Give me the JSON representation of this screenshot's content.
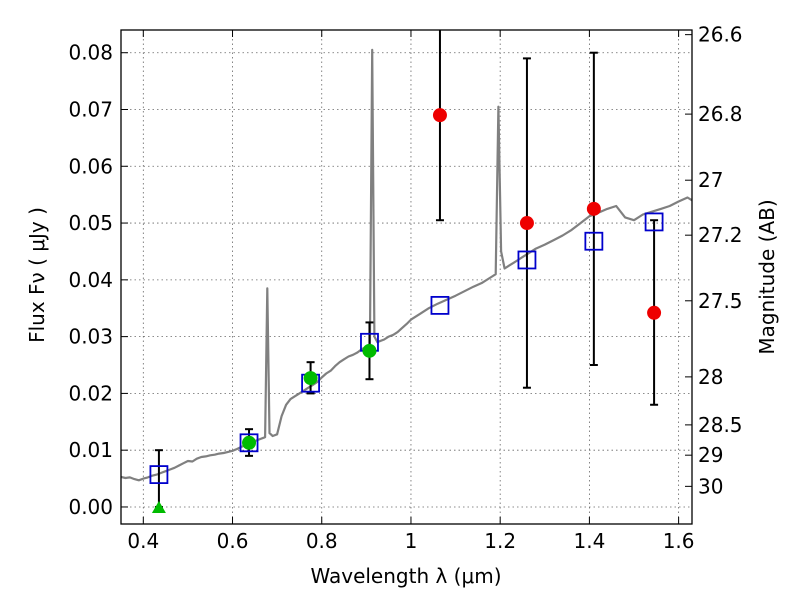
{
  "chart_data": {
    "type": "scatter",
    "xlabel": "Wavelength  λ (μm)",
    "ylabel": "Flux  Fν  ( μJy )",
    "y2label": "Magnitude (AB)",
    "xlim": [
      0.35,
      1.63
    ],
    "ylim": [
      -0.003,
      0.084
    ],
    "grid": true,
    "xticks": [
      {
        "value": 0.4,
        "label": "0.4"
      },
      {
        "value": 0.6,
        "label": "0.6"
      },
      {
        "value": 0.8,
        "label": "0.8"
      },
      {
        "value": 1.0,
        "label": "1"
      },
      {
        "value": 1.2,
        "label": "1.2"
      },
      {
        "value": 1.4,
        "label": "1.4"
      },
      {
        "value": 1.6,
        "label": "1.6"
      }
    ],
    "yticks": [
      {
        "value": 0.0,
        "label": "0.00"
      },
      {
        "value": 0.01,
        "label": "0.01"
      },
      {
        "value": 0.02,
        "label": "0.02"
      },
      {
        "value": 0.03,
        "label": "0.03"
      },
      {
        "value": 0.04,
        "label": "0.04"
      },
      {
        "value": 0.05,
        "label": "0.05"
      },
      {
        "value": 0.06,
        "label": "0.06"
      },
      {
        "value": 0.07,
        "label": "0.07"
      },
      {
        "value": 0.08,
        "label": "0.08"
      }
    ],
    "y2ticks": [
      {
        "mag": 26.6,
        "label": "26.6"
      },
      {
        "mag": 26.8,
        "label": "26.8"
      },
      {
        "mag": 27.0,
        "label": "27"
      },
      {
        "mag": 27.2,
        "label": "27.2"
      },
      {
        "mag": 27.5,
        "label": "27.5"
      },
      {
        "mag": 28.0,
        "label": "28"
      },
      {
        "mag": 28.5,
        "label": "28.5"
      },
      {
        "mag": 29.0,
        "label": "29"
      },
      {
        "mag": 30.0,
        "label": "30"
      }
    ],
    "colors": {
      "spectrum": "#808080",
      "model": "#0000cc",
      "green": "#00bb00",
      "red": "#ee0000",
      "errorbar": "#000000",
      "grid": "#666666"
    },
    "spectrum": [
      [
        0.35,
        0.0053
      ],
      [
        0.36,
        0.0051
      ],
      [
        0.37,
        0.0052
      ],
      [
        0.38,
        0.0049
      ],
      [
        0.39,
        0.0047
      ],
      [
        0.4,
        0.005
      ],
      [
        0.41,
        0.0052
      ],
      [
        0.42,
        0.0055
      ],
      [
        0.43,
        0.0057
      ],
      [
        0.44,
        0.006
      ],
      [
        0.45,
        0.0063
      ],
      [
        0.46,
        0.0066
      ],
      [
        0.47,
        0.0069
      ],
      [
        0.48,
        0.0073
      ],
      [
        0.49,
        0.0077
      ],
      [
        0.5,
        0.0081
      ],
      [
        0.51,
        0.008
      ],
      [
        0.52,
        0.0085
      ],
      [
        0.53,
        0.0088
      ],
      [
        0.54,
        0.0089
      ],
      [
        0.55,
        0.0091
      ],
      [
        0.56,
        0.0092
      ],
      [
        0.57,
        0.0094
      ],
      [
        0.58,
        0.0095
      ],
      [
        0.59,
        0.0097
      ],
      [
        0.6,
        0.0099
      ],
      [
        0.61,
        0.0102
      ],
      [
        0.62,
        0.0106
      ],
      [
        0.63,
        0.0109
      ],
      [
        0.64,
        0.0113
      ],
      [
        0.65,
        0.0116
      ],
      [
        0.66,
        0.0119
      ],
      [
        0.67,
        0.0122
      ],
      [
        0.673,
        0.0123
      ],
      [
        0.678,
        0.0385
      ],
      [
        0.683,
        0.013
      ],
      [
        0.69,
        0.0125
      ],
      [
        0.7,
        0.0128
      ],
      [
        0.71,
        0.016
      ],
      [
        0.72,
        0.018
      ],
      [
        0.73,
        0.019
      ],
      [
        0.74,
        0.0195
      ],
      [
        0.75,
        0.02
      ],
      [
        0.76,
        0.0205
      ],
      [
        0.77,
        0.021
      ],
      [
        0.78,
        0.0215
      ],
      [
        0.79,
        0.022
      ],
      [
        0.8,
        0.0228
      ],
      [
        0.81,
        0.0235
      ],
      [
        0.82,
        0.024
      ],
      [
        0.83,
        0.0248
      ],
      [
        0.84,
        0.0255
      ],
      [
        0.85,
        0.026
      ],
      [
        0.86,
        0.0265
      ],
      [
        0.87,
        0.0268
      ],
      [
        0.88,
        0.0272
      ],
      [
        0.89,
        0.0278
      ],
      [
        0.9,
        0.0282
      ],
      [
        0.908,
        0.0284
      ],
      [
        0.913,
        0.0805
      ],
      [
        0.918,
        0.03
      ],
      [
        0.925,
        0.029
      ],
      [
        0.93,
        0.0292
      ],
      [
        0.94,
        0.0295
      ],
      [
        0.95,
        0.03
      ],
      [
        0.96,
        0.0303
      ],
      [
        0.97,
        0.0308
      ],
      [
        0.98,
        0.0315
      ],
      [
        0.99,
        0.0322
      ],
      [
        1.0,
        0.033
      ],
      [
        1.02,
        0.034
      ],
      [
        1.04,
        0.035
      ],
      [
        1.06,
        0.0358
      ],
      [
        1.08,
        0.0365
      ],
      [
        1.1,
        0.0372
      ],
      [
        1.12,
        0.038
      ],
      [
        1.14,
        0.0388
      ],
      [
        1.16,
        0.0395
      ],
      [
        1.18,
        0.0405
      ],
      [
        1.19,
        0.041
      ],
      [
        1.196,
        0.0705
      ],
      [
        1.202,
        0.045
      ],
      [
        1.21,
        0.042
      ],
      [
        1.22,
        0.0425
      ],
      [
        1.23,
        0.043
      ],
      [
        1.24,
        0.0435
      ],
      [
        1.25,
        0.044
      ],
      [
        1.26,
        0.0445
      ],
      [
        1.28,
        0.0455
      ],
      [
        1.3,
        0.0462
      ],
      [
        1.32,
        0.047
      ],
      [
        1.34,
        0.0478
      ],
      [
        1.36,
        0.0488
      ],
      [
        1.38,
        0.05
      ],
      [
        1.4,
        0.0512
      ],
      [
        1.42,
        0.0518
      ],
      [
        1.44,
        0.0525
      ],
      [
        1.46,
        0.053
      ],
      [
        1.48,
        0.051
      ],
      [
        1.5,
        0.0505
      ],
      [
        1.52,
        0.0515
      ],
      [
        1.54,
        0.052
      ],
      [
        1.56,
        0.0525
      ],
      [
        1.58,
        0.053
      ],
      [
        1.6,
        0.0538
      ],
      [
        1.62,
        0.0545
      ],
      [
        1.63,
        0.054
      ]
    ],
    "model_points": [
      {
        "x": 0.435,
        "y": 0.0057
      },
      {
        "x": 0.637,
        "y": 0.0113
      },
      {
        "x": 0.775,
        "y": 0.0218
      },
      {
        "x": 0.907,
        "y": 0.029
      },
      {
        "x": 1.065,
        "y": 0.0355
      },
      {
        "x": 1.26,
        "y": 0.0435
      },
      {
        "x": 1.41,
        "y": 0.0468
      },
      {
        "x": 1.545,
        "y": 0.0502
      }
    ],
    "green_points": [
      {
        "x": 0.637,
        "y": 0.0113,
        "ylow": 0.009,
        "yhigh": 0.0137
      },
      {
        "x": 0.775,
        "y": 0.0227,
        "ylow": 0.02,
        "yhigh": 0.0255
      },
      {
        "x": 0.907,
        "y": 0.0275,
        "ylow": 0.0225,
        "yhigh": 0.0325
      }
    ],
    "green_upper_limits": [
      {
        "x": 0.435,
        "y": 0.0,
        "ylow": 0.0,
        "yhigh": 0.01
      }
    ],
    "red_points": [
      {
        "x": 1.065,
        "y": 0.069,
        "ylow": 0.0505,
        "yhigh": 0.085
      },
      {
        "x": 1.26,
        "y": 0.05,
        "ylow": 0.021,
        "yhigh": 0.079
      },
      {
        "x": 1.41,
        "y": 0.0525,
        "ylow": 0.025,
        "yhigh": 0.08
      },
      {
        "x": 1.545,
        "y": 0.0342,
        "ylow": 0.018,
        "yhigh": 0.0505
      }
    ]
  }
}
